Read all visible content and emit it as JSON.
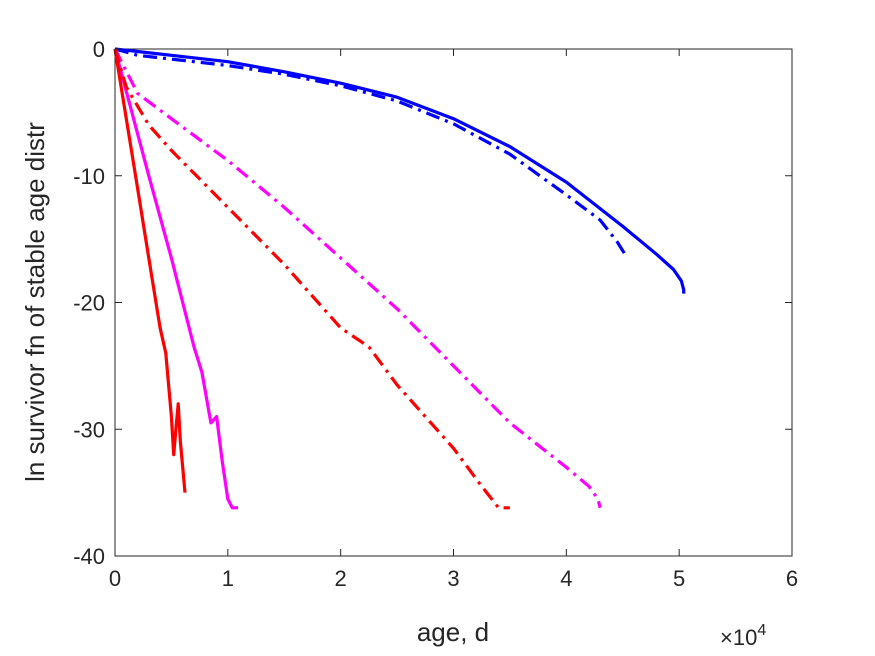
{
  "chart_data": {
    "type": "line",
    "title": "",
    "xlabel": "age, d",
    "ylabel": "ln survivor fn of stable age distr",
    "x_multiplier_label": {
      "base": "×10",
      "exponent": "4"
    },
    "xlim": [
      0,
      60000
    ],
    "ylim": [
      -40,
      0
    ],
    "xticks": [
      0,
      10000,
      20000,
      30000,
      40000,
      50000,
      60000
    ],
    "xtick_labels": [
      "0",
      "1",
      "2",
      "3",
      "4",
      "5",
      "6"
    ],
    "yticks": [
      0,
      -10,
      -20,
      -30,
      -40
    ],
    "ytick_labels": [
      "0",
      "-10",
      "-20",
      "-30",
      "-40"
    ],
    "grid": false,
    "legend": "none",
    "series": [
      {
        "color": "#0000ff",
        "style": "solid",
        "x": [
          0,
          2000,
          5000,
          10000,
          15000,
          20000,
          25000,
          30000,
          35000,
          40000,
          45000,
          48000,
          49500,
          50200,
          50400,
          50400
        ],
        "y": [
          0,
          -0.2,
          -0.5,
          -1.0,
          -1.8,
          -2.7,
          -3.8,
          -5.5,
          -7.7,
          -10.5,
          -14,
          -16.2,
          -17.4,
          -18.3,
          -19,
          -19.3
        ]
      },
      {
        "color": "#0000ff",
        "style": "dashdot",
        "x": [
          0,
          2000,
          5000,
          10000,
          15000,
          20000,
          25000,
          30000,
          35000,
          40000,
          43000,
          44500,
          45200,
          45400
        ],
        "y": [
          0,
          -0.5,
          -0.8,
          -1.3,
          -2.0,
          -2.9,
          -4.1,
          -5.9,
          -8.3,
          -11.5,
          -13.5,
          -15.2,
          -16.2,
          -16.2
        ]
      },
      {
        "color": "#ff00ff",
        "style": "solid",
        "x": [
          0,
          1500,
          3000,
          5000,
          7000,
          7700,
          8500,
          9000,
          9500,
          10000,
          10400,
          10900
        ],
        "y": [
          0,
          -5,
          -10,
          -16.5,
          -23.5,
          -25.5,
          -29.5,
          -29,
          -32.5,
          -35.5,
          -36.2,
          -36.2
        ]
      },
      {
        "color": "#ff00ff",
        "style": "dashdot",
        "x": [
          0,
          2000,
          5000,
          10000,
          15000,
          20000,
          25000,
          30000,
          35000,
          40000,
          42000,
          42800,
          43000
        ],
        "y": [
          0,
          -3.5,
          -5.5,
          -8.8,
          -12.5,
          -16.5,
          -20.5,
          -25,
          -29.5,
          -33,
          -34.5,
          -35.5,
          -36.2
        ]
      },
      {
        "color": "#ff0000",
        "style": "solid",
        "x": [
          0,
          1000,
          2000,
          3000,
          4000,
          4500,
          5000,
          5200,
          5400,
          5600,
          5800,
          6000,
          6200
        ],
        "y": [
          0,
          -5.5,
          -11,
          -16.5,
          -22,
          -24,
          -29,
          -32,
          -30,
          -28,
          -31,
          -33,
          -35
        ]
      },
      {
        "color": "#ff0000",
        "style": "dashdot",
        "x": [
          0,
          1000,
          3000,
          5000,
          10000,
          15000,
          20000,
          22500,
          25000,
          30000,
          32500,
          34000,
          35000
        ],
        "y": [
          0,
          -3,
          -6,
          -8,
          -12.5,
          -17,
          -22,
          -23.5,
          -26.5,
          -31.5,
          -34.5,
          -36.2,
          -36.2
        ]
      }
    ]
  }
}
